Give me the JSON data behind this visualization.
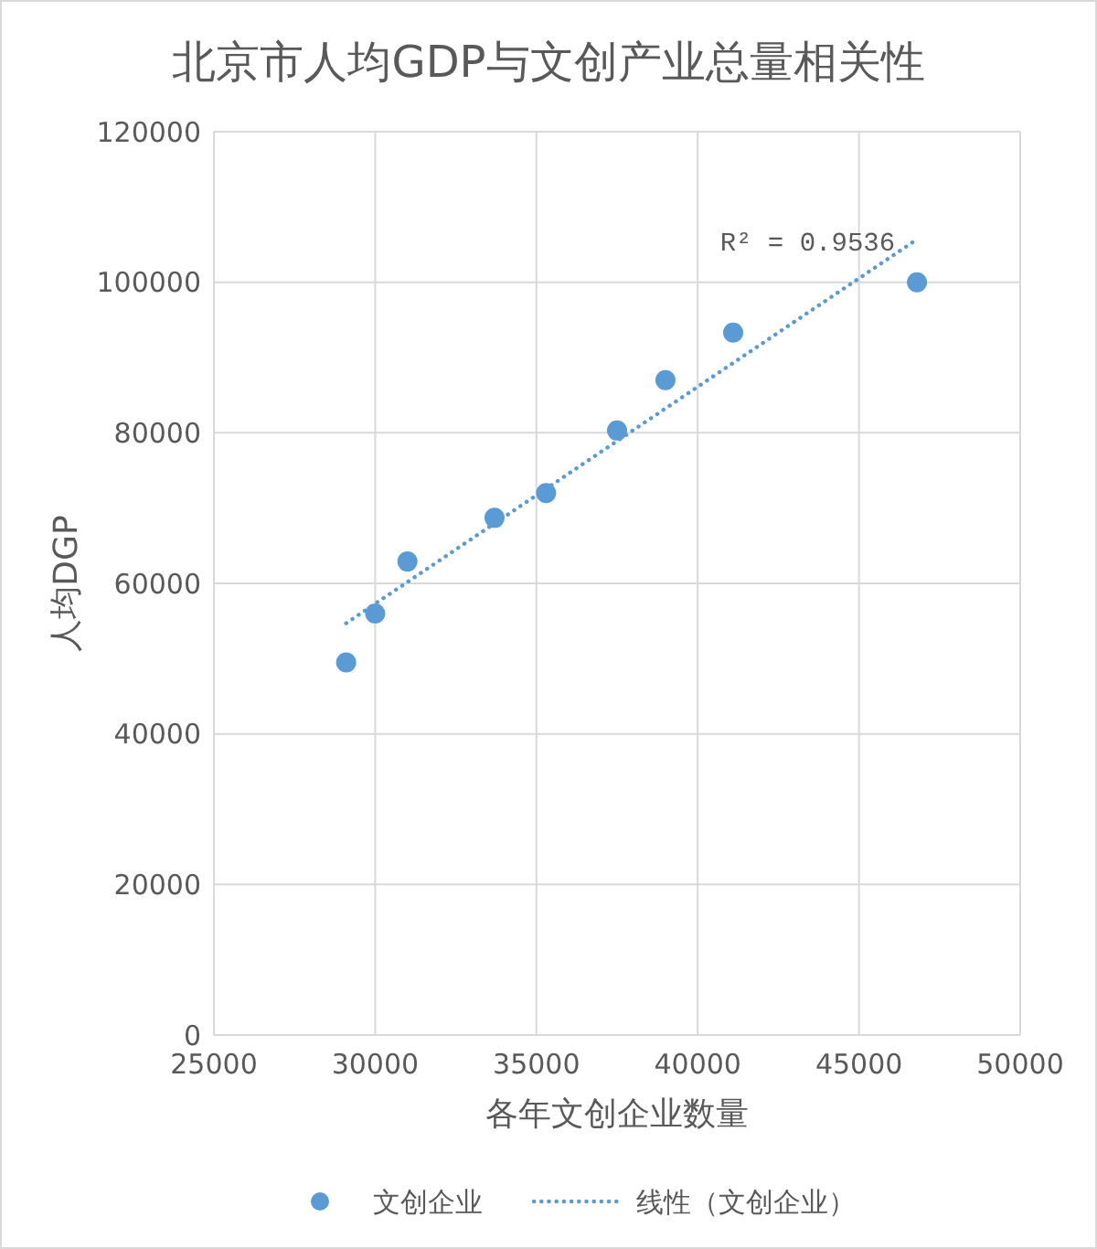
{
  "chart_data": {
    "type": "scatter",
    "title": "北京市人均GDP与文创产业总量相关性",
    "xlabel": "各年文创企业数量",
    "ylabel": "人均DGP",
    "x": [
      29100,
      30000,
      31000,
      33700,
      35300,
      37500,
      39000,
      41100,
      46800
    ],
    "series": [
      {
        "name": "文创企业",
        "color": "#5b9bd5",
        "marker": "circle",
        "values": [
          49500,
          56000,
          62900,
          68700,
          72000,
          80300,
          87000,
          93300,
          100000
        ]
      },
      {
        "name": "线性（文创企业）",
        "type": "line",
        "color": "#5b9bd5",
        "line_style": "dotted",
        "x": [
          29100,
          46800
        ],
        "values": [
          54700,
          105700
        ]
      }
    ],
    "annotations": [
      "R² = 0.9536"
    ],
    "xlim": [
      25000,
      50000
    ],
    "xticks": [
      25000,
      30000,
      35000,
      40000,
      45000,
      50000
    ],
    "ylim": [
      0,
      120000
    ],
    "yticks": [
      0,
      20000,
      40000,
      60000,
      80000,
      100000,
      120000
    ],
    "grid": true,
    "legend": "bottom"
  }
}
